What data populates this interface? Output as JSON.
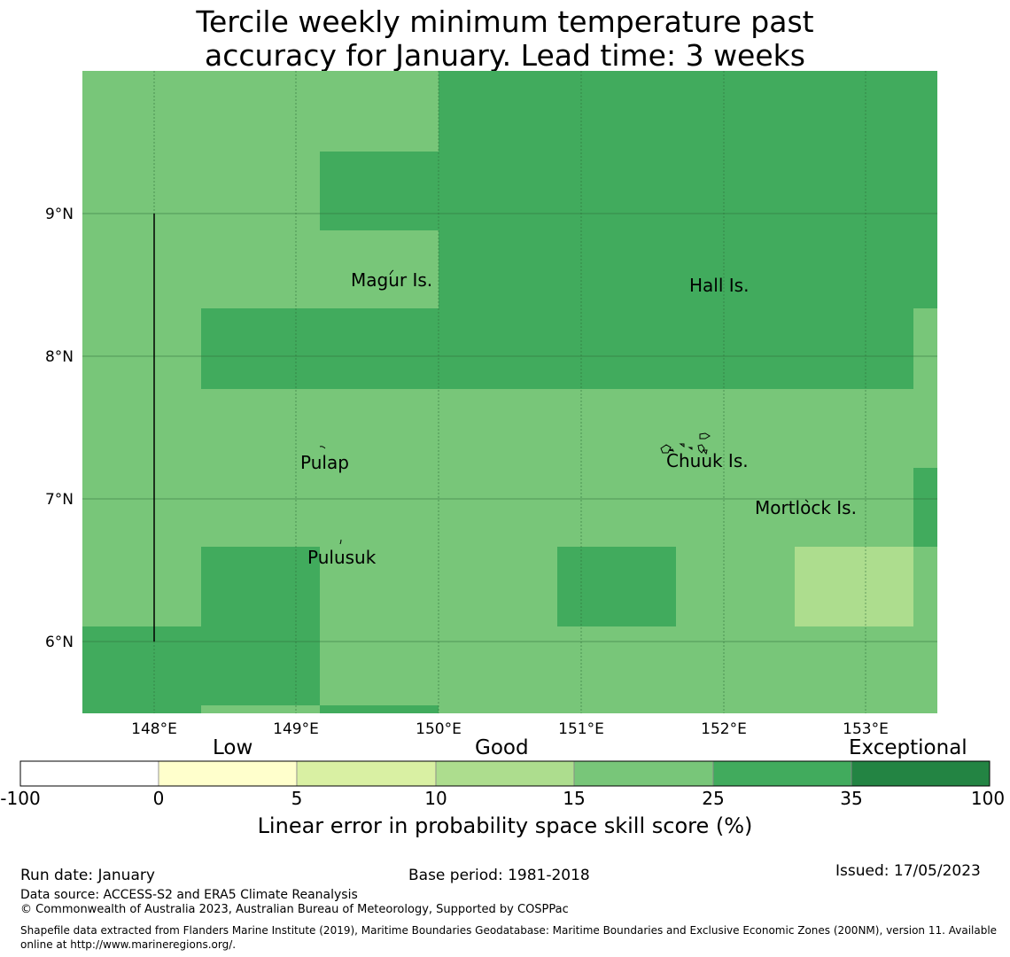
{
  "title_line1": "Tercile weekly minimum temperature past",
  "title_line2": "accuracy for January. Lead time: 3 weeks",
  "map": {
    "lon_labels": [
      "148°E",
      "149°E",
      "150°E",
      "151°E",
      "152°E",
      "153°E"
    ],
    "lat_labels": [
      "9°N",
      "8°N",
      "7°N",
      "6°N"
    ],
    "places": [
      "Magur Is.",
      "Hall Is.",
      "Pulap",
      "Chuuk Is.",
      "Mortlock Is.",
      "Pulusuk"
    ],
    "colors": {
      "class_15_25": "#78c679",
      "class_25_35": "#41ab5d",
      "class_10_15": "#addd8e",
      "grid": "#2d6b38"
    }
  },
  "colorbar": {
    "headings": [
      "Low",
      "Good",
      "Exceptional"
    ],
    "ticks": [
      "-100",
      "0",
      "5",
      "10",
      "15",
      "25",
      "35",
      "100"
    ],
    "colors": [
      "#ffffff",
      "#ffffcc",
      "#d9f0a3",
      "#addd8e",
      "#78c679",
      "#41ab5d",
      "#238443"
    ],
    "label": "Linear error in probability space skill score (%)"
  },
  "footer": {
    "run_date": "Run date: January",
    "base_period": "Base period: 1981-2018",
    "issued": "Issued: 17/05/2023",
    "data_source": "Data source: ACCESS-S2 and ERA5 Climate Reanalysis",
    "copyright": "© Commonwealth of Australia 2023, Australian Bureau of Meteorology, Supported by COSPPac",
    "shapefile": "Shapefile data extracted from Flanders Marine Institute (2019), Maritime Boundaries Geodatabase: Maritime Boundaries and Exclusive Economic Zones (200NM), version 11. Available online at http://www.marineregions.org/."
  }
}
